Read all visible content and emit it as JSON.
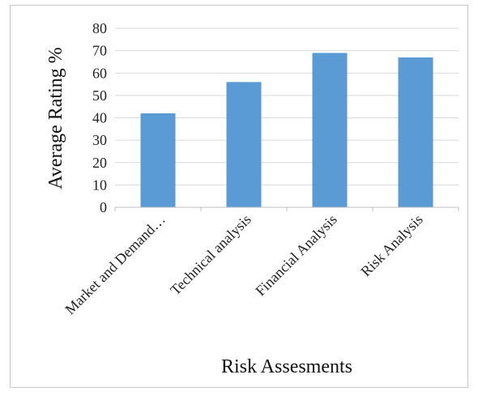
{
  "chart_data": {
    "type": "bar",
    "categories": [
      "Market and Demand…",
      "Technical analysis",
      "Financial Analysis",
      "Risk Analysis"
    ],
    "values": [
      42,
      56,
      69,
      67
    ],
    "xlabel": "Risk Assesments",
    "ylabel": "Average Rating %",
    "ylim": [
      0,
      80
    ],
    "yticks": [
      0,
      10,
      20,
      30,
      40,
      50,
      60,
      70,
      80
    ],
    "grid": true,
    "legend": "none",
    "bar_color": "#5b9bd5",
    "grid_color": "#d9d9d9",
    "axis_color": "#bfbfbf"
  }
}
